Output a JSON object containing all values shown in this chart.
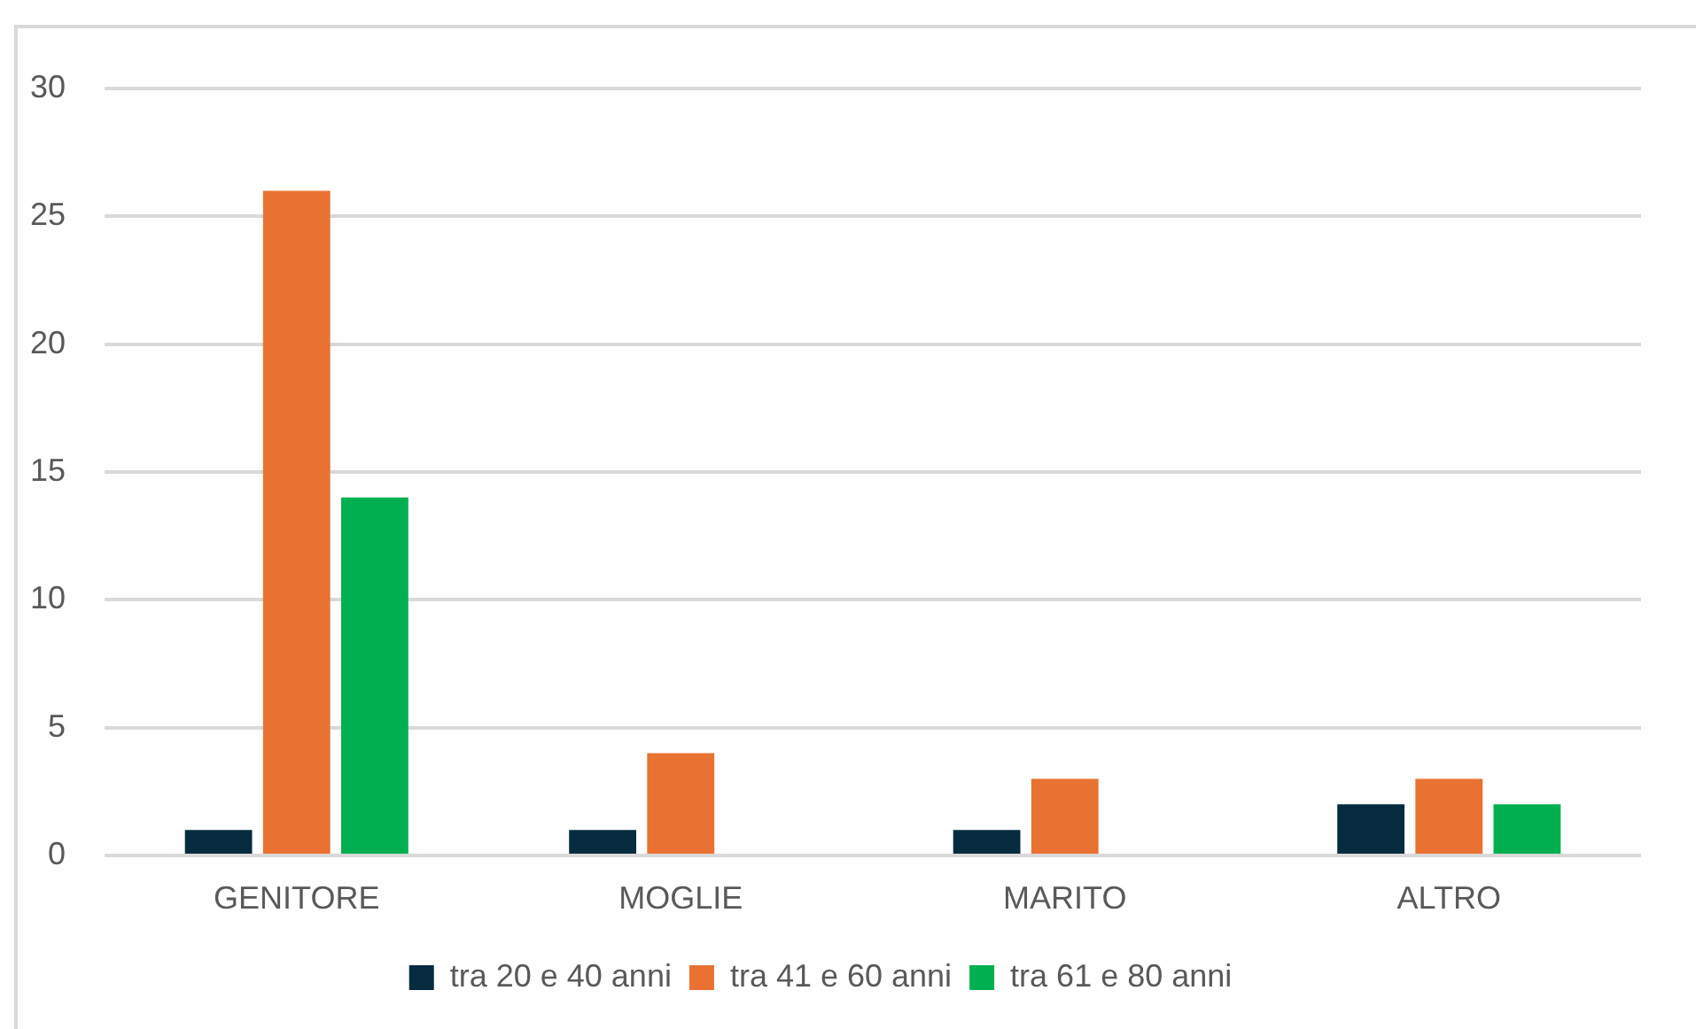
{
  "chart_data": {
    "type": "bar",
    "categories": [
      "GENITORE",
      "MOGLIE",
      "MARITO",
      "ALTRO"
    ],
    "series": [
      {
        "name": "tra 20 e 40 anni",
        "color": "#062b3f",
        "values": [
          1,
          1,
          1,
          2
        ]
      },
      {
        "name": "tra 41 e 60 anni",
        "color": "#e97132",
        "values": [
          26,
          4,
          3,
          3
        ]
      },
      {
        "name": "tra 61 e 80 anni",
        "color": "#00b050",
        "values": [
          14,
          0,
          0,
          2
        ]
      }
    ],
    "ylim": [
      0,
      30
    ],
    "yticks": [
      0,
      5,
      10,
      15,
      20,
      25,
      30
    ],
    "grid": "y",
    "legend": "bottom"
  }
}
